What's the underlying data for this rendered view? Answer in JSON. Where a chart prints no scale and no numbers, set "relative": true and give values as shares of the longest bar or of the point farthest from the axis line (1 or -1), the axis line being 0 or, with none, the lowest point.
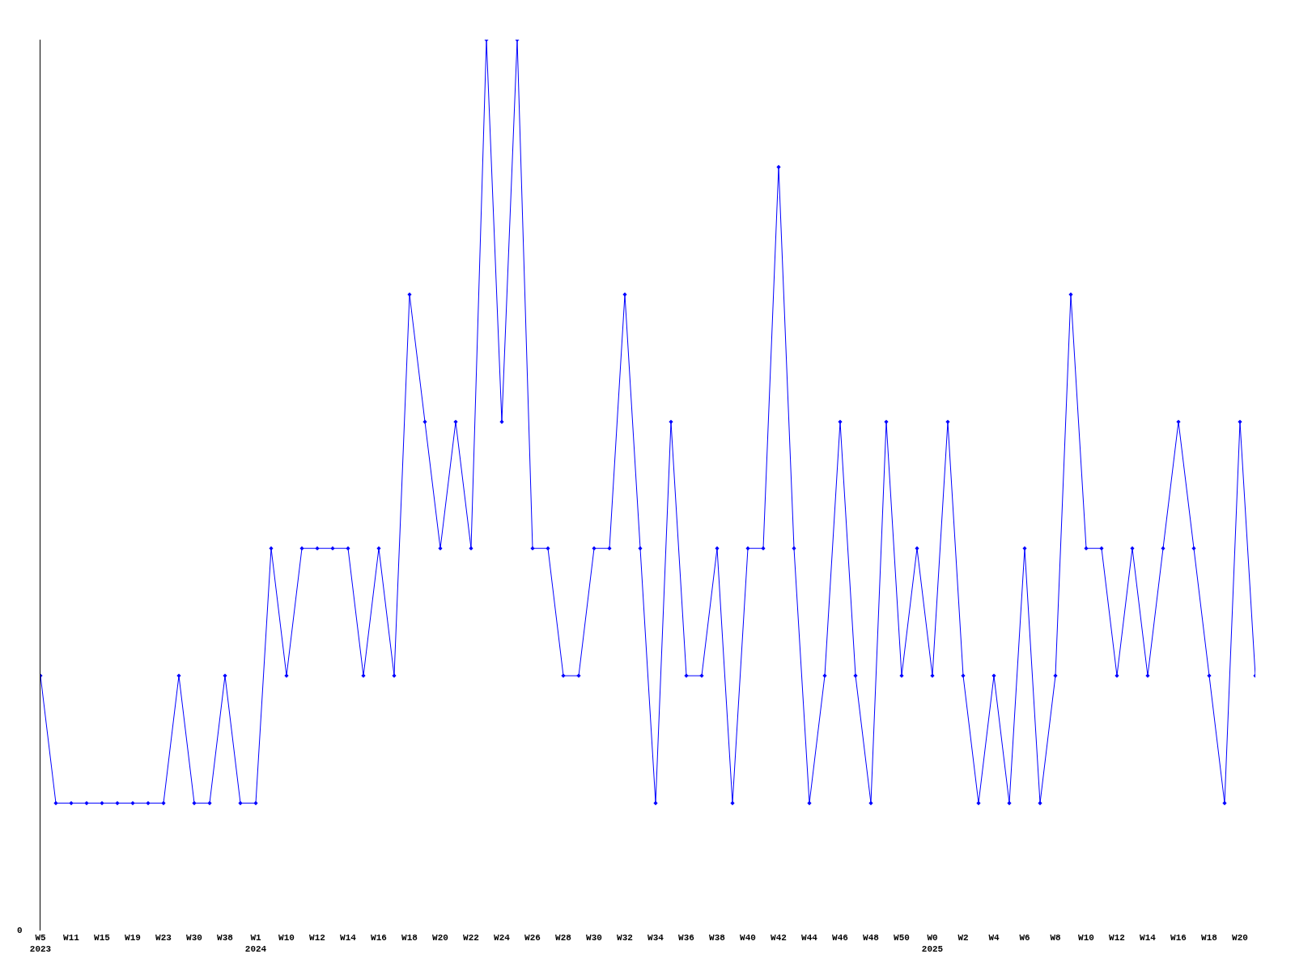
{
  "chart_data": {
    "type": "line",
    "relative": true,
    "annotations": [
      "0"
    ],
    "marker": "diamond",
    "line_style": "solid",
    "categories": [
      "W5\n2023",
      null,
      "W11",
      null,
      "W15",
      null,
      "W19",
      null,
      "W23",
      null,
      "W30",
      null,
      "W38",
      null,
      "W1\n2024",
      null,
      "W10",
      null,
      "W12",
      null,
      "W14",
      null,
      "W16",
      null,
      "W18",
      null,
      "W20",
      null,
      "W22",
      null,
      "W24",
      null,
      "W26",
      null,
      "W28",
      null,
      "W30",
      null,
      "W32",
      null,
      "W34",
      null,
      "W36",
      null,
      "W38",
      null,
      "W40",
      null,
      "W42",
      null,
      "W44",
      null,
      "W46",
      null,
      "W48",
      null,
      "W50",
      null,
      "W0\n2025",
      null,
      "W2",
      null,
      "W4",
      null,
      "W6",
      null,
      "W8",
      null,
      "W10",
      null,
      "W12",
      null,
      "W14",
      null,
      "W16",
      null,
      "W18",
      null,
      "W20",
      null
    ],
    "series": [
      {
        "color": "#0000ff",
        "values": [
          0.286,
          0.143,
          0.143,
          0.143,
          0.143,
          0.143,
          0.143,
          0.143,
          0.143,
          0.286,
          0.143,
          0.143,
          0.286,
          0.143,
          0.143,
          0.429,
          0.286,
          0.429,
          0.429,
          0.429,
          0.429,
          0.286,
          0.429,
          0.286,
          0.714,
          0.571,
          0.429,
          0.571,
          0.429,
          1,
          0.571,
          1,
          0.429,
          0.429,
          0.286,
          0.286,
          0.429,
          0.429,
          0.714,
          0.429,
          0.143,
          0.571,
          0.286,
          0.286,
          0.429,
          0.143,
          0.429,
          0.429,
          0.857,
          0.429,
          0.143,
          0.286,
          0.571,
          0.286,
          0.143,
          0.571,
          0.286,
          0.429,
          0.286,
          0.571,
          0.286,
          0.143,
          0.286,
          0.143,
          0.429,
          0.143,
          0.286,
          0.714,
          0.429,
          0.429,
          0.286,
          0.429,
          0.286,
          0.429,
          0.571,
          0.429,
          0.286,
          0.143,
          0.571,
          0.286
        ]
      }
    ]
  }
}
